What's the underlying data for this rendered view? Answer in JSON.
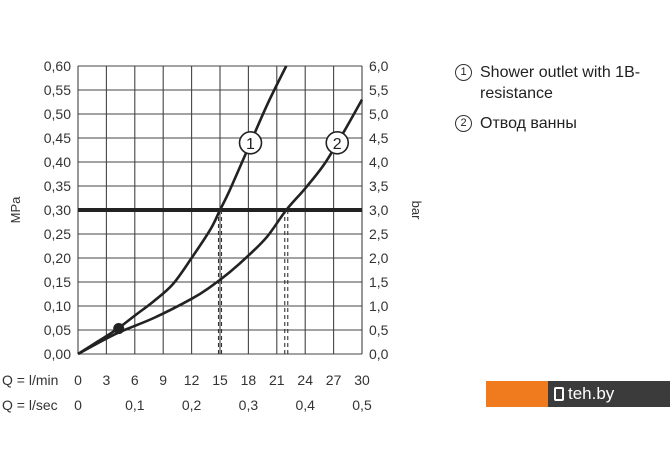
{
  "chart_data": {
    "type": "line",
    "title": "",
    "ylabel_left": "MPa",
    "ylabel_right": "bar",
    "ylim": [
      0,
      0.6
    ],
    "xlim": [
      0,
      30
    ],
    "yticks_left": [
      "0,00",
      "0,05",
      "0,10",
      "0,15",
      "0,20",
      "0,25",
      "0,30",
      "0,35",
      "0,40",
      "0,45",
      "0,50",
      "0,55",
      "0,60"
    ],
    "yticks_right": [
      "0,0",
      "0,5",
      "1,0",
      "1,5",
      "2,0",
      "2,5",
      "3,0",
      "3,5",
      "4,0",
      "4,5",
      "5,0",
      "5,5",
      "6,0"
    ],
    "x_row1": {
      "label": "Q = l/min",
      "ticks": [
        {
          "v": 0,
          "t": "0"
        },
        {
          "v": 3,
          "t": "3"
        },
        {
          "v": 6,
          "t": "6"
        },
        {
          "v": 9,
          "t": "9"
        },
        {
          "v": 12,
          "t": "12"
        },
        {
          "v": 15,
          "t": "15"
        },
        {
          "v": 18,
          "t": "18"
        },
        {
          "v": 21,
          "t": "21"
        },
        {
          "v": 24,
          "t": "24"
        },
        {
          "v": 27,
          "t": "27"
        },
        {
          "v": 30,
          "t": "30"
        }
      ]
    },
    "x_row2": {
      "label": "Q = l/sec",
      "ticks": [
        {
          "v": 0,
          "t": "0"
        },
        {
          "v": 6,
          "t": "0,1"
        },
        {
          "v": 12,
          "t": "0,2"
        },
        {
          "v": 18,
          "t": "0,3"
        },
        {
          "v": 24,
          "t": "0,4"
        },
        {
          "v": 30,
          "t": "0,5"
        }
      ]
    },
    "series": [
      {
        "name": "1",
        "x": [
          0,
          2,
          4,
          6,
          8,
          10,
          12,
          14,
          15,
          16,
          18,
          20,
          22
        ],
        "y": [
          0,
          0.025,
          0.05,
          0.08,
          0.11,
          0.145,
          0.2,
          0.26,
          0.3,
          0.34,
          0.43,
          0.52,
          0.6
        ]
      },
      {
        "name": "2",
        "x": [
          0,
          4,
          8,
          12,
          14,
          16,
          18,
          20,
          22,
          24,
          26,
          28,
          30
        ],
        "y": [
          0,
          0.042,
          0.075,
          0.115,
          0.14,
          0.17,
          0.205,
          0.245,
          0.3,
          0.345,
          0.395,
          0.46,
          0.53
        ]
      }
    ],
    "reference_line": {
      "y": 0.3
    },
    "reference_marks": [
      15,
      22
    ],
    "point": {
      "x": 4.3,
      "y": 0.053
    }
  },
  "legend": [
    {
      "num": "1",
      "text": "Shower outlet with 1B-resistance"
    },
    {
      "num": "2",
      "text": "Отвод ванны"
    }
  ],
  "watermark": {
    "text": "teh.by"
  }
}
